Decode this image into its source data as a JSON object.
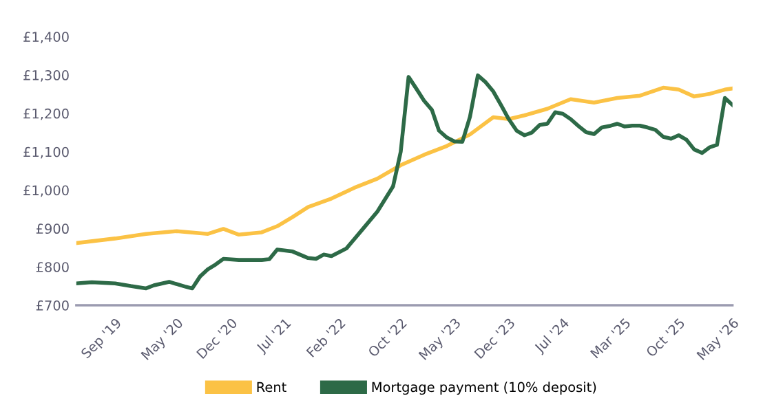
{
  "chart_data": {
    "type": "line",
    "xlim": [
      "2019-04",
      "2026-05"
    ],
    "xticks": [
      {
        "value": "2019-09",
        "label": "Sep '19"
      },
      {
        "value": "2020-05",
        "label": "May '20"
      },
      {
        "value": "2020-12",
        "label": "Dec '20"
      },
      {
        "value": "2021-07",
        "label": "Jul '21"
      },
      {
        "value": "2022-02",
        "label": "Feb '22"
      },
      {
        "value": "2022-10",
        "label": "Oct '22"
      },
      {
        "value": "2023-05",
        "label": "May '23"
      },
      {
        "value": "2023-12",
        "label": "Dec '23"
      },
      {
        "value": "2024-07",
        "label": "Jul '24"
      },
      {
        "value": "2025-03",
        "label": "Mar '25"
      },
      {
        "value": "2025-10",
        "label": "Oct '25"
      },
      {
        "value": "2026-05",
        "label": "May '26"
      }
    ],
    "ylim": [
      700,
      1400
    ],
    "yticks": [
      {
        "value": 700,
        "label": "£700"
      },
      {
        "value": 800,
        "label": "£800"
      },
      {
        "value": 900,
        "label": "£900"
      },
      {
        "value": 1000,
        "label": "£1,000"
      },
      {
        "value": 1100,
        "label": "£1,100"
      },
      {
        "value": 1200,
        "label": "£1,200"
      },
      {
        "value": 1300,
        "label": "£1,300"
      },
      {
        "value": 1400,
        "label": "£1,400"
      }
    ],
    "grid": false,
    "legend": "bottom",
    "line_style": "solid",
    "series": [
      {
        "name": "Rent",
        "color": "#fbc245",
        "x": [
          "2019-04",
          "2019-09",
          "2020-01",
          "2020-05",
          "2020-09",
          "2020-11",
          "2021-01",
          "2021-04",
          "2021-06",
          "2021-08",
          "2021-10",
          "2022-01",
          "2022-04",
          "2022-07",
          "2022-10",
          "2023-01",
          "2023-04",
          "2023-07",
          "2023-10",
          "2023-12",
          "2024-02",
          "2024-05",
          "2024-08",
          "2024-11",
          "2025-02",
          "2025-05",
          "2025-08",
          "2025-10",
          "2025-12",
          "2026-02",
          "2026-04",
          "2026-05"
        ],
        "values": [
          862,
          874,
          886,
          893,
          886,
          899,
          884,
          890,
          906,
          930,
          956,
          978,
          1006,
          1030,
          1065,
          1092,
          1115,
          1145,
          1190,
          1185,
          1195,
          1212,
          1237,
          1228,
          1240,
          1246,
          1267,
          1262,
          1244,
          1251,
          1262,
          1265
        ]
      },
      {
        "name": "Mortgage payment (10% deposit)",
        "color": "#2d6a47",
        "x": [
          "2019-04",
          "2019-06",
          "2019-09",
          "2019-11",
          "2020-01",
          "2020-02",
          "2020-04",
          "2020-06",
          "2020-07",
          "2020-08",
          "2020-09",
          "2020-10",
          "2020-11",
          "2021-01",
          "2021-04",
          "2021-05",
          "2021-06",
          "2021-08",
          "2021-10",
          "2021-11",
          "2021-12",
          "2022-01",
          "2022-03",
          "2022-05",
          "2022-07",
          "2022-09",
          "2022-10",
          "2022-11",
          "2022-12",
          "2023-01",
          "2023-02",
          "2023-03",
          "2023-04",
          "2023-05",
          "2023-06",
          "2023-07",
          "2023-08",
          "2023-09",
          "2023-10",
          "2023-11",
          "2023-12",
          "2024-01",
          "2024-02",
          "2024-03",
          "2024-04",
          "2024-05",
          "2024-06",
          "2024-07",
          "2024-08",
          "2024-09",
          "2024-10",
          "2024-11",
          "2024-12",
          "2025-01",
          "2025-02",
          "2025-03",
          "2025-04",
          "2025-05",
          "2025-06",
          "2025-07",
          "2025-08",
          "2025-09",
          "2025-10",
          "2025-11",
          "2025-12",
          "2026-01",
          "2026-02",
          "2026-03",
          "2026-04",
          "2026-05"
        ],
        "values": [
          757,
          760,
          757,
          750,
          744,
          752,
          761,
          749,
          744,
          775,
          794,
          806,
          821,
          818,
          818,
          820,
          845,
          840,
          823,
          821,
          832,
          828,
          848,
          896,
          944,
          1010,
          1100,
          1295,
          1265,
          1233,
          1209,
          1155,
          1137,
          1127,
          1126,
          1191,
          1299,
          1281,
          1257,
          1221,
          1185,
          1155,
          1143,
          1150,
          1170,
          1173,
          1203,
          1199,
          1185,
          1167,
          1151,
          1146,
          1163,
          1167,
          1173,
          1166,
          1168,
          1168,
          1163,
          1157,
          1139,
          1134,
          1143,
          1131,
          1106,
          1097,
          1112,
          1118,
          1240,
          1222
        ]
      }
    ]
  }
}
